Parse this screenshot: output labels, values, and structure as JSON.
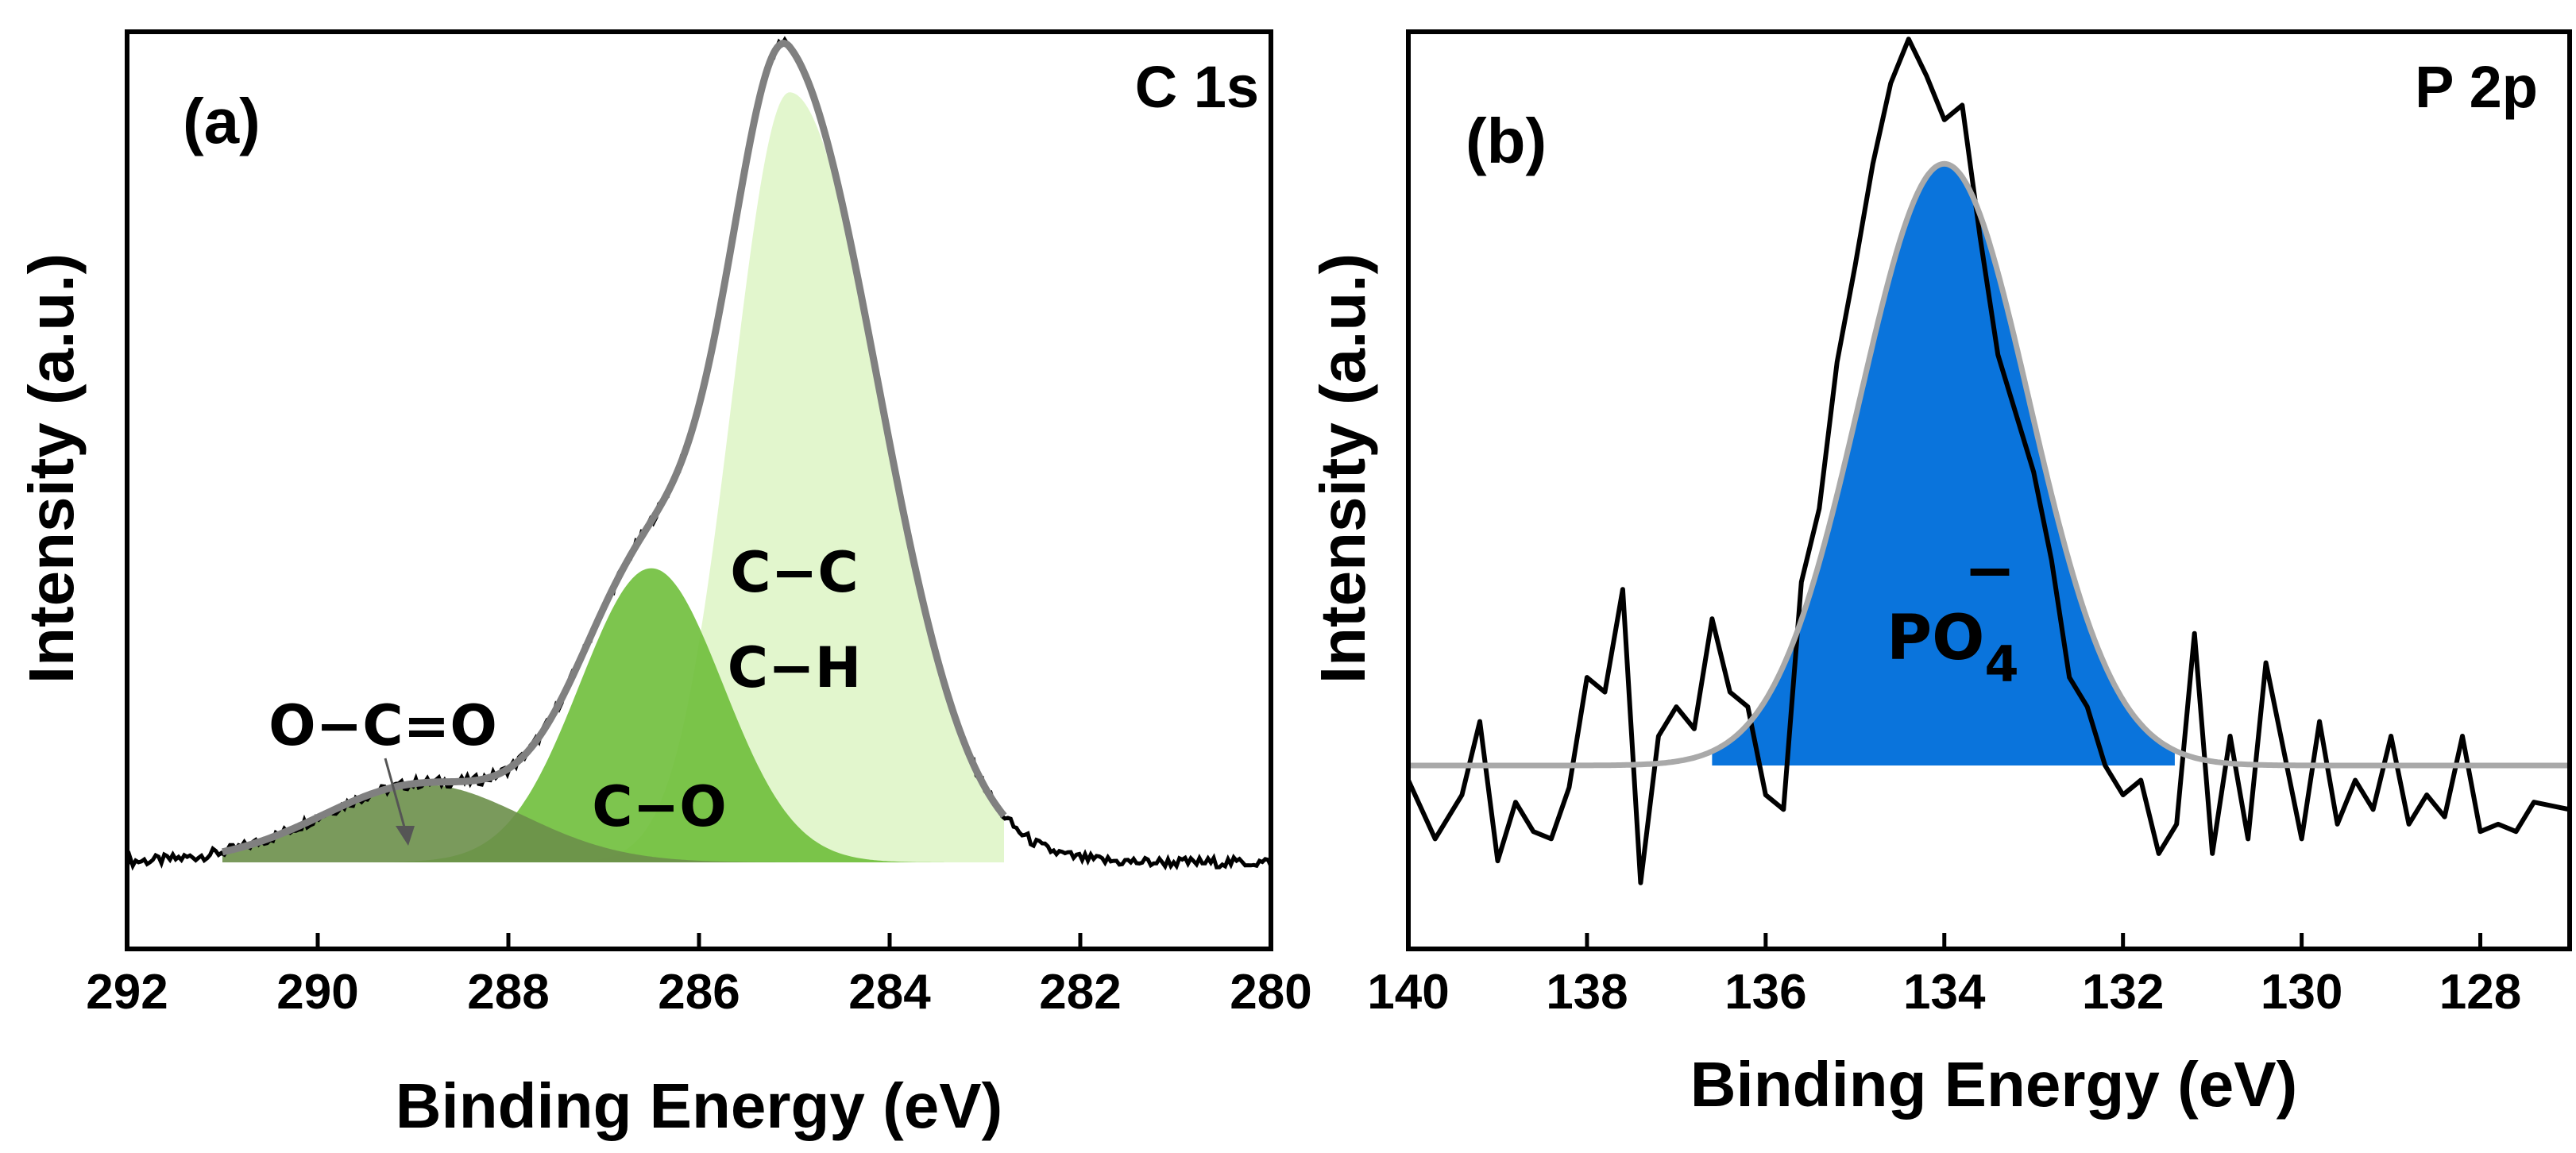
{
  "chart_data": [
    {
      "type": "line",
      "panel_label": "(a)",
      "core_level": "C 1s",
      "xlabel": "Binding Energy (eV)",
      "ylabel": "Intensity (a.u.)",
      "xlim": [
        292,
        280
      ],
      "ylim": [
        0,
        1.06
      ],
      "x_reversed": true,
      "x_ticks": [
        "292",
        "290",
        "288",
        "286",
        "284",
        "282",
        "280"
      ],
      "grid": false,
      "baseline": 0.1,
      "components": [
        {
          "label": "O−C=O",
          "center": 288.9,
          "height": 0.09,
          "width": 1.05,
          "color": "#6b8f4a"
        },
        {
          "label": "C−O",
          "center": 286.5,
          "height": 0.34,
          "width": 0.75,
          "color": "#6fbf3b"
        },
        {
          "label": "C−C",
          "label2": "C−H",
          "center": 285.05,
          "height": 0.89,
          "width_left": 0.95,
          "width_right": 0.6,
          "color": "#ddf5c4"
        }
      ],
      "envelope_color": "#808080",
      "raw_color": "#000000"
    },
    {
      "type": "line",
      "panel_label": "(b)",
      "core_level": "P 2p",
      "xlabel": "Binding Energy (eV)",
      "ylabel": "Intensity (a.u.)",
      "xlim": [
        140,
        127
      ],
      "ylim": [
        -0.25,
        1.0
      ],
      "x_reversed": true,
      "x_ticks": [
        "140",
        "138",
        "136",
        "134",
        "132",
        "130",
        "128"
      ],
      "grid": false,
      "baseline": 0.0,
      "components": [
        {
          "label": "PO",
          "subscript": "4",
          "superscript": "−",
          "center": 134.0,
          "height": 0.82,
          "width": 0.95,
          "color": "#0a74dc"
        }
      ],
      "raw": {
        "x": [
          140.0,
          139.7,
          139.4,
          139.2,
          139.0,
          138.8,
          138.6,
          138.4,
          138.2,
          138.0,
          137.8,
          137.6,
          137.4,
          137.2,
          137.0,
          136.8,
          136.6,
          136.4,
          136.2,
          136.0,
          135.8,
          135.6,
          135.4,
          135.2,
          135.0,
          134.8,
          134.6,
          134.4,
          134.2,
          134.0,
          133.8,
          133.6,
          133.4,
          133.2,
          133.0,
          132.8,
          132.6,
          132.4,
          132.2,
          132.0,
          131.8,
          131.6,
          131.4,
          131.2,
          131.0,
          130.8,
          130.6,
          130.4,
          130.2,
          130.0,
          129.8,
          129.6,
          129.4,
          129.2,
          129.0,
          128.8,
          128.6,
          128.4,
          128.2,
          128.0,
          127.8,
          127.6,
          127.4,
          127.0
        ],
        "y": [
          -0.02,
          -0.1,
          -0.04,
          0.06,
          -0.13,
          -0.05,
          -0.09,
          -0.1,
          -0.03,
          0.12,
          0.1,
          0.24,
          -0.16,
          0.04,
          0.08,
          0.05,
          0.2,
          0.1,
          0.08,
          -0.04,
          -0.06,
          0.25,
          0.35,
          0.55,
          0.68,
          0.82,
          0.93,
          0.99,
          0.94,
          0.88,
          0.9,
          0.72,
          0.56,
          0.48,
          0.4,
          0.28,
          0.12,
          0.08,
          0.0,
          -0.04,
          -0.02,
          -0.12,
          -0.08,
          0.18,
          -0.12,
          0.04,
          -0.1,
          0.14,
          0.02,
          -0.1,
          0.06,
          -0.08,
          -0.02,
          -0.06,
          0.04,
          -0.08,
          -0.04,
          -0.07,
          0.04,
          -0.09,
          -0.08,
          -0.09,
          -0.05,
          -0.06
        ]
      },
      "envelope_color": "#a9a9a9",
      "raw_color": "#000000"
    }
  ]
}
